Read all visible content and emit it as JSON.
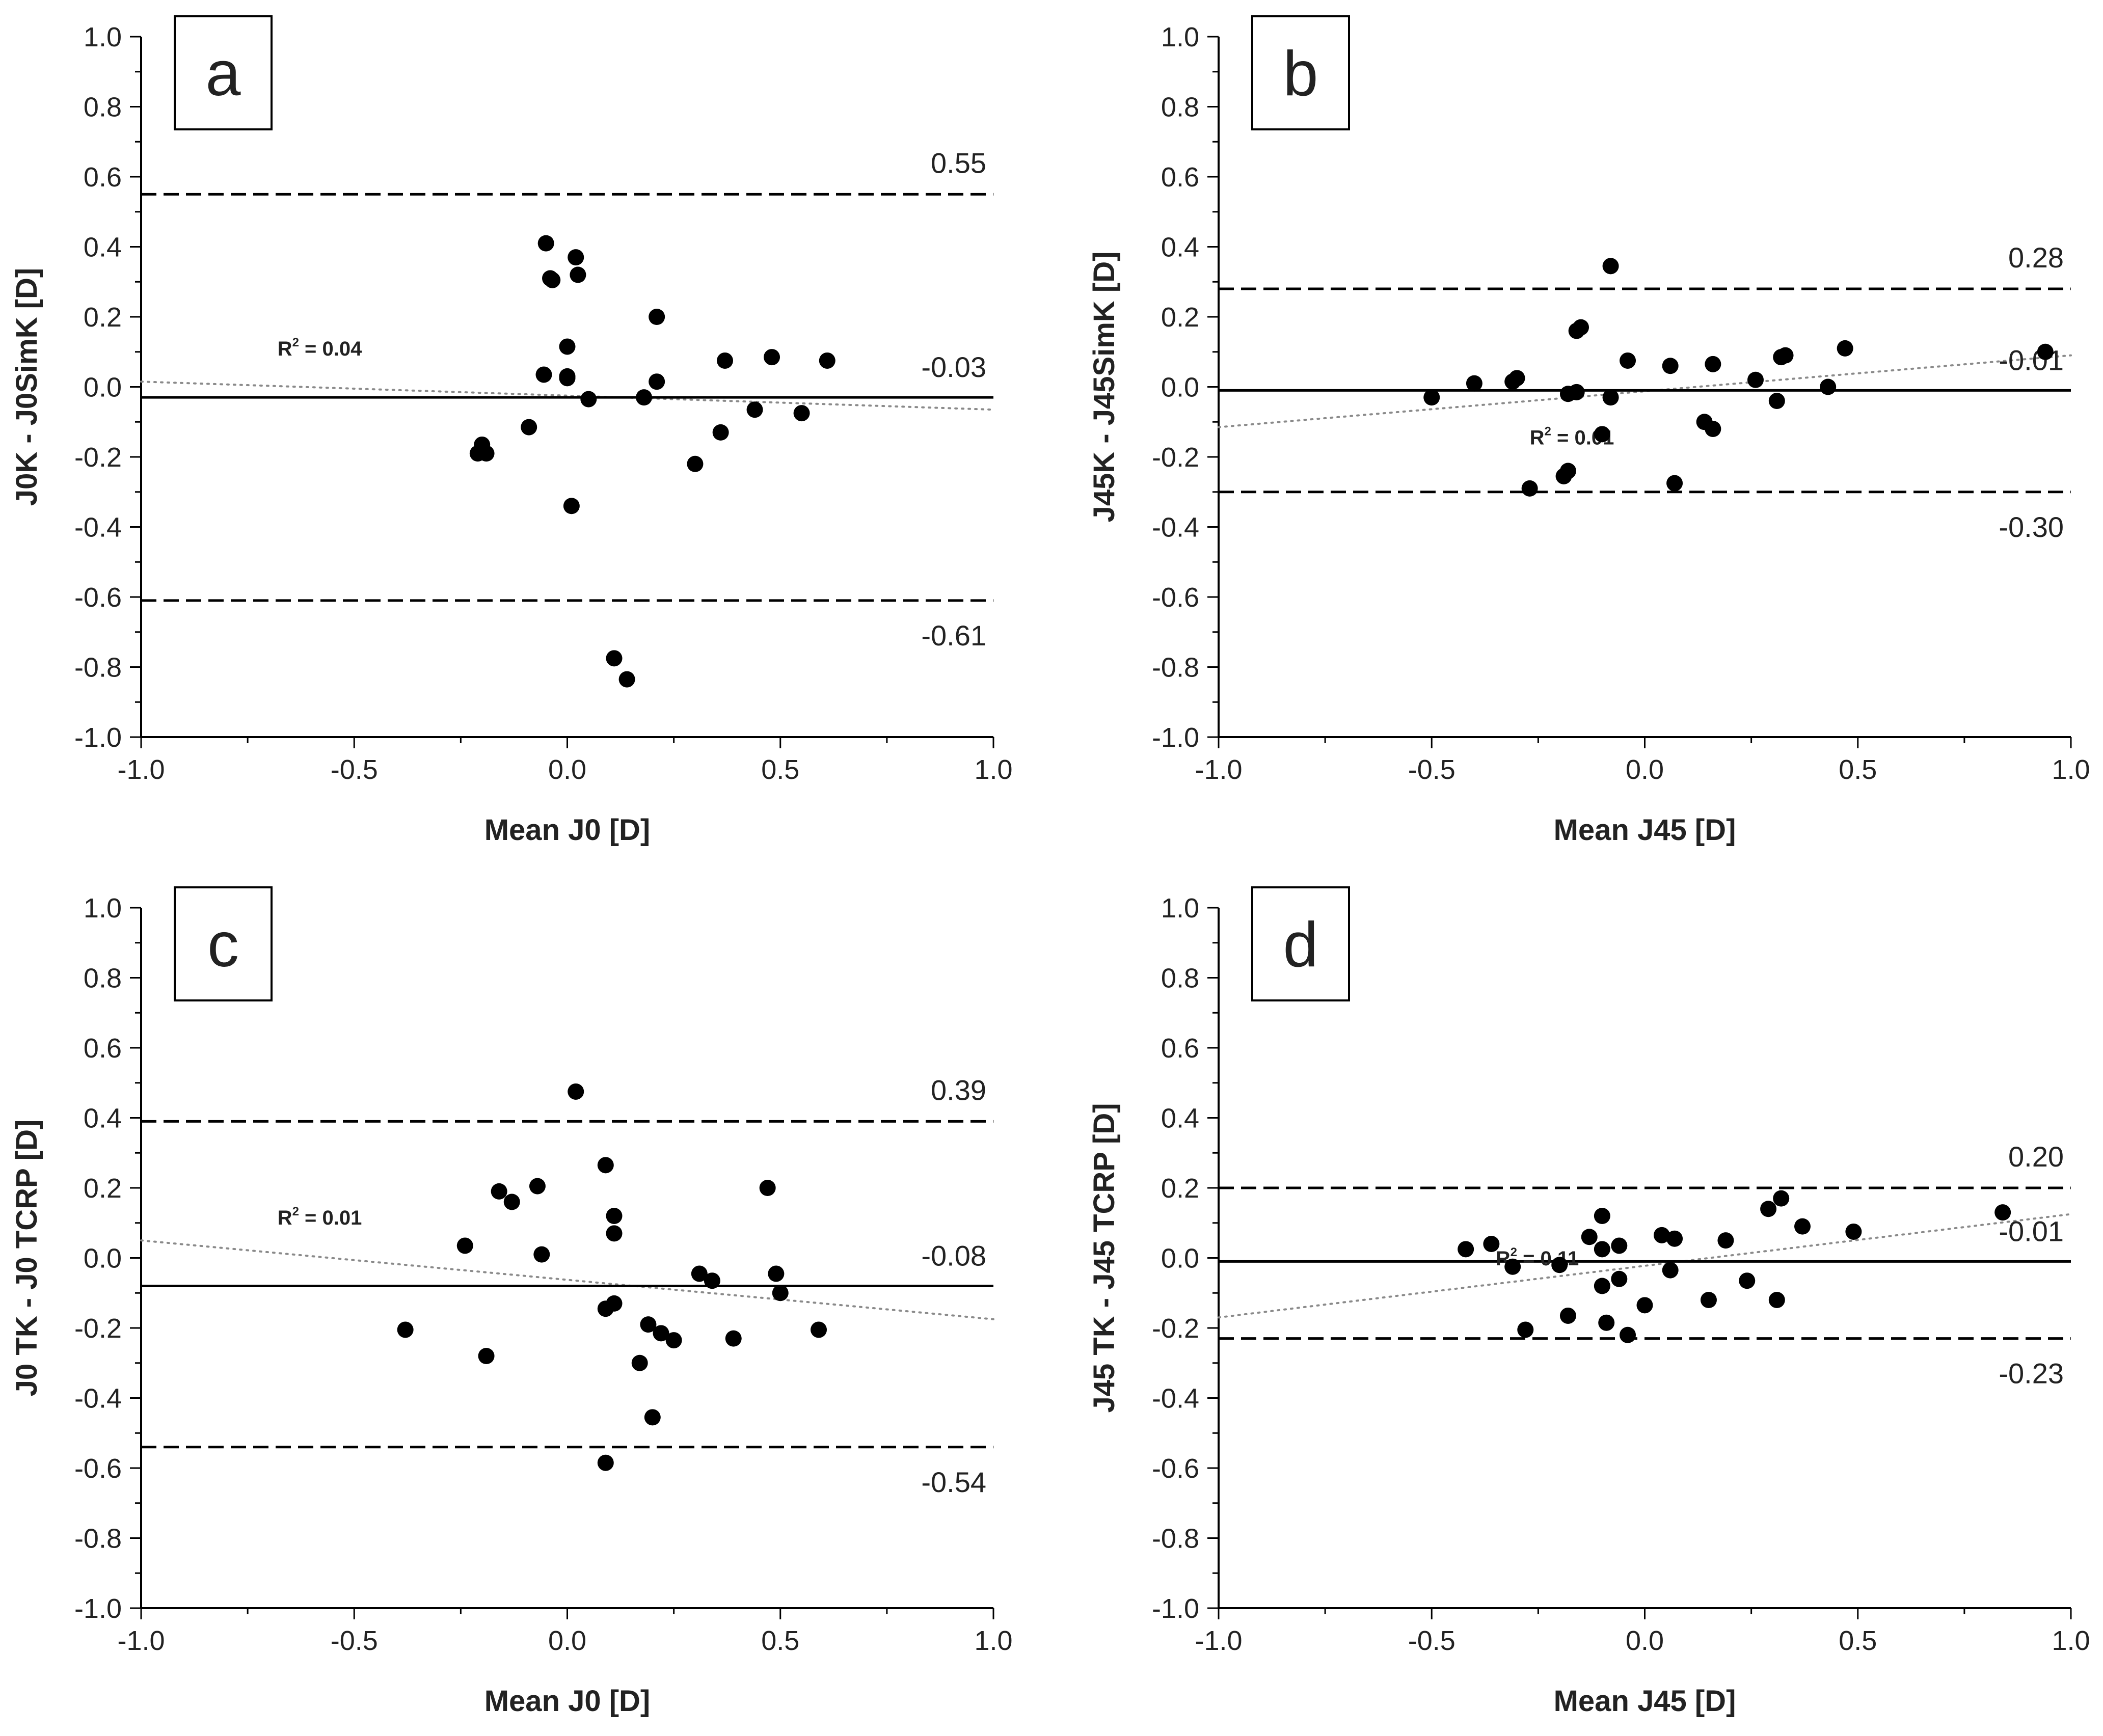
{
  "chart_data": [
    {
      "type": "scatter",
      "panel_label": "a",
      "xlabel": "Mean J0 [D]",
      "ylabel": "J0K - J0SimK [D]",
      "xlim": [
        -1.0,
        1.0
      ],
      "ylim": [
        -1.0,
        1.0
      ],
      "x_ticks": [
        "-1.0",
        "-0.5",
        "0.0",
        "0.5",
        "1.0"
      ],
      "y_ticks": [
        "1.0",
        "0.8",
        "0.6",
        "0.4",
        "0.2",
        "0.0",
        "-0.2",
        "-0.4",
        "-0.6",
        "-0.8",
        "-1.0"
      ],
      "mean_line": {
        "value": -0.03,
        "label": "-0.03"
      },
      "upper_loa": {
        "value": 0.55,
        "label": "0.55"
      },
      "lower_loa": {
        "value": -0.61,
        "label": "-0.61"
      },
      "trend": {
        "y_start": 0.015,
        "y_end": -0.065,
        "r2_prefix": "R",
        "r2_exp": "2",
        "r2_value": " = 0.04"
      },
      "points": [
        [
          -0.05,
          0.41
        ],
        [
          -0.04,
          0.31
        ],
        [
          -0.035,
          0.305
        ],
        [
          0.02,
          0.37
        ],
        [
          0.025,
          0.32
        ],
        [
          0.21,
          0.2
        ],
        [
          0.0,
          0.115
        ],
        [
          -0.055,
          0.035
        ],
        [
          0.0,
          0.03
        ],
        [
          0.0,
          0.025
        ],
        [
          0.21,
          0.015
        ],
        [
          0.37,
          0.075
        ],
        [
          0.48,
          0.085
        ],
        [
          0.61,
          0.075
        ],
        [
          0.05,
          -0.035
        ],
        [
          0.18,
          -0.03
        ],
        [
          0.44,
          -0.065
        ],
        [
          0.55,
          -0.075
        ],
        [
          0.36,
          -0.13
        ],
        [
          -0.09,
          -0.115
        ],
        [
          -0.2,
          -0.165
        ],
        [
          -0.21,
          -0.19
        ],
        [
          -0.19,
          -0.19
        ],
        [
          0.3,
          -0.22
        ],
        [
          0.01,
          -0.34
        ],
        [
          0.11,
          -0.775
        ],
        [
          0.14,
          -0.835
        ]
      ]
    },
    {
      "type": "scatter",
      "panel_label": "b",
      "xlabel": "Mean J45 [D]",
      "ylabel": "J45K - J45SimK [D]",
      "xlim": [
        -1.0,
        1.0
      ],
      "ylim": [
        -1.0,
        1.0
      ],
      "x_ticks": [
        "-1.0",
        "-0.5",
        "0.0",
        "0.5",
        "1.0"
      ],
      "y_ticks": [
        "1.0",
        "0.8",
        "0.6",
        "0.4",
        "0.2",
        "0.0",
        "-0.2",
        "-0.4",
        "-0.6",
        "-0.8",
        "-1.0"
      ],
      "mean_line": {
        "value": -0.01,
        "label": "-0.01"
      },
      "upper_loa": {
        "value": 0.28,
        "label": "0.28"
      },
      "lower_loa": {
        "value": -0.3,
        "label": "-0.30"
      },
      "trend": {
        "y_start": -0.115,
        "y_end": 0.09,
        "r2_prefix": "R",
        "r2_exp": "2",
        "r2_value": " = 0.01"
      },
      "points": [
        [
          -0.08,
          0.345
        ],
        [
          -0.16,
          0.16
        ],
        [
          -0.15,
          0.17
        ],
        [
          0.47,
          0.11
        ],
        [
          0.94,
          0.1
        ],
        [
          0.32,
          0.085
        ],
        [
          0.33,
          0.09
        ],
        [
          -0.04,
          0.075
        ],
        [
          0.06,
          0.06
        ],
        [
          0.16,
          0.065
        ],
        [
          0.26,
          0.02
        ],
        [
          -0.3,
          0.025
        ],
        [
          -0.31,
          0.015
        ],
        [
          -0.4,
          0.01
        ],
        [
          0.43,
          0.0
        ],
        [
          -0.16,
          -0.015
        ],
        [
          -0.18,
          -0.02
        ],
        [
          -0.08,
          -0.03
        ],
        [
          -0.5,
          -0.03
        ],
        [
          0.31,
          -0.04
        ],
        [
          0.14,
          -0.1
        ],
        [
          0.16,
          -0.12
        ],
        [
          -0.1,
          -0.135
        ],
        [
          -0.18,
          -0.24
        ],
        [
          -0.19,
          -0.255
        ],
        [
          -0.27,
          -0.29
        ],
        [
          0.07,
          -0.275
        ]
      ]
    },
    {
      "type": "scatter",
      "panel_label": "c",
      "xlabel": "Mean J0 [D]",
      "ylabel": "J0 TK - J0 TCRP [D]",
      "xlim": [
        -1.0,
        1.0
      ],
      "ylim": [
        -1.0,
        1.0
      ],
      "x_ticks": [
        "-1.0",
        "-0.5",
        "0.0",
        "0.5",
        "1.0"
      ],
      "y_ticks": [
        "1.0",
        "0.8",
        "0.6",
        "0.4",
        "0.2",
        "0.0",
        "-0.2",
        "-0.4",
        "-0.6",
        "-0.8",
        "-1.0"
      ],
      "mean_line": {
        "value": -0.08,
        "label": "-0.08"
      },
      "upper_loa": {
        "value": 0.39,
        "label": "0.39"
      },
      "lower_loa": {
        "value": -0.54,
        "label": "-0.54"
      },
      "trend": {
        "y_start": 0.05,
        "y_end": -0.175,
        "r2_prefix": "R",
        "r2_exp": "2",
        "r2_value": " = 0.01"
      },
      "points": [
        [
          0.02,
          0.475
        ],
        [
          0.09,
          0.265
        ],
        [
          -0.16,
          0.19
        ],
        [
          -0.07,
          0.205
        ],
        [
          -0.13,
          0.16
        ],
        [
          0.47,
          0.2
        ],
        [
          0.11,
          0.12
        ],
        [
          0.11,
          0.07
        ],
        [
          -0.24,
          0.035
        ],
        [
          -0.06,
          0.01
        ],
        [
          0.31,
          -0.045
        ],
        [
          0.49,
          -0.045
        ],
        [
          0.34,
          -0.065
        ],
        [
          0.5,
          -0.1
        ],
        [
          0.11,
          -0.13
        ],
        [
          0.09,
          -0.145
        ],
        [
          -0.38,
          -0.205
        ],
        [
          0.59,
          -0.205
        ],
        [
          0.19,
          -0.19
        ],
        [
          0.22,
          -0.215
        ],
        [
          0.25,
          -0.235
        ],
        [
          0.39,
          -0.23
        ],
        [
          0.17,
          -0.3
        ],
        [
          -0.19,
          -0.28
        ],
        [
          0.2,
          -0.455
        ],
        [
          0.09,
          -0.585
        ]
      ]
    },
    {
      "type": "scatter",
      "panel_label": "d",
      "xlabel": "Mean J45 [D]",
      "ylabel": "J45 TK - J45 TCRP [D]",
      "xlim": [
        -1.0,
        1.0
      ],
      "ylim": [
        -1.0,
        1.0
      ],
      "x_ticks": [
        "-1.0",
        "-0.5",
        "0.0",
        "0.5",
        "1.0"
      ],
      "y_ticks": [
        "1.0",
        "0.8",
        "0.6",
        "0.4",
        "0.2",
        "0.0",
        "-0.2",
        "-0.4",
        "-0.6",
        "-0.8",
        "-1.0"
      ],
      "mean_line": {
        "value": -0.01,
        "label": "-0.01"
      },
      "upper_loa": {
        "value": 0.2,
        "label": "0.20"
      },
      "lower_loa": {
        "value": -0.23,
        "label": "-0.23"
      },
      "trend": {
        "y_start": -0.17,
        "y_end": 0.125,
        "r2_prefix": "R",
        "r2_exp": "2",
        "r2_value": " = 0.11"
      },
      "points": [
        [
          0.32,
          0.17
        ],
        [
          0.29,
          0.14
        ],
        [
          0.84,
          0.13
        ],
        [
          -0.1,
          0.12
        ],
        [
          0.37,
          0.09
        ],
        [
          0.49,
          0.075
        ],
        [
          -0.13,
          0.06
        ],
        [
          0.04,
          0.065
        ],
        [
          0.07,
          0.055
        ],
        [
          0.19,
          0.05
        ],
        [
          -0.36,
          0.04
        ],
        [
          -0.42,
          0.025
        ],
        [
          -0.1,
          0.025
        ],
        [
          -0.06,
          0.035
        ],
        [
          -0.31,
          -0.025
        ],
        [
          -0.2,
          -0.02
        ],
        [
          0.06,
          -0.035
        ],
        [
          -0.06,
          -0.06
        ],
        [
          -0.1,
          -0.08
        ],
        [
          0.0,
          -0.135
        ],
        [
          0.15,
          -0.12
        ],
        [
          0.31,
          -0.12
        ],
        [
          0.24,
          -0.065
        ],
        [
          -0.18,
          -0.165
        ],
        [
          -0.09,
          -0.185
        ],
        [
          -0.28,
          -0.205
        ],
        [
          -0.04,
          -0.22
        ]
      ]
    }
  ]
}
